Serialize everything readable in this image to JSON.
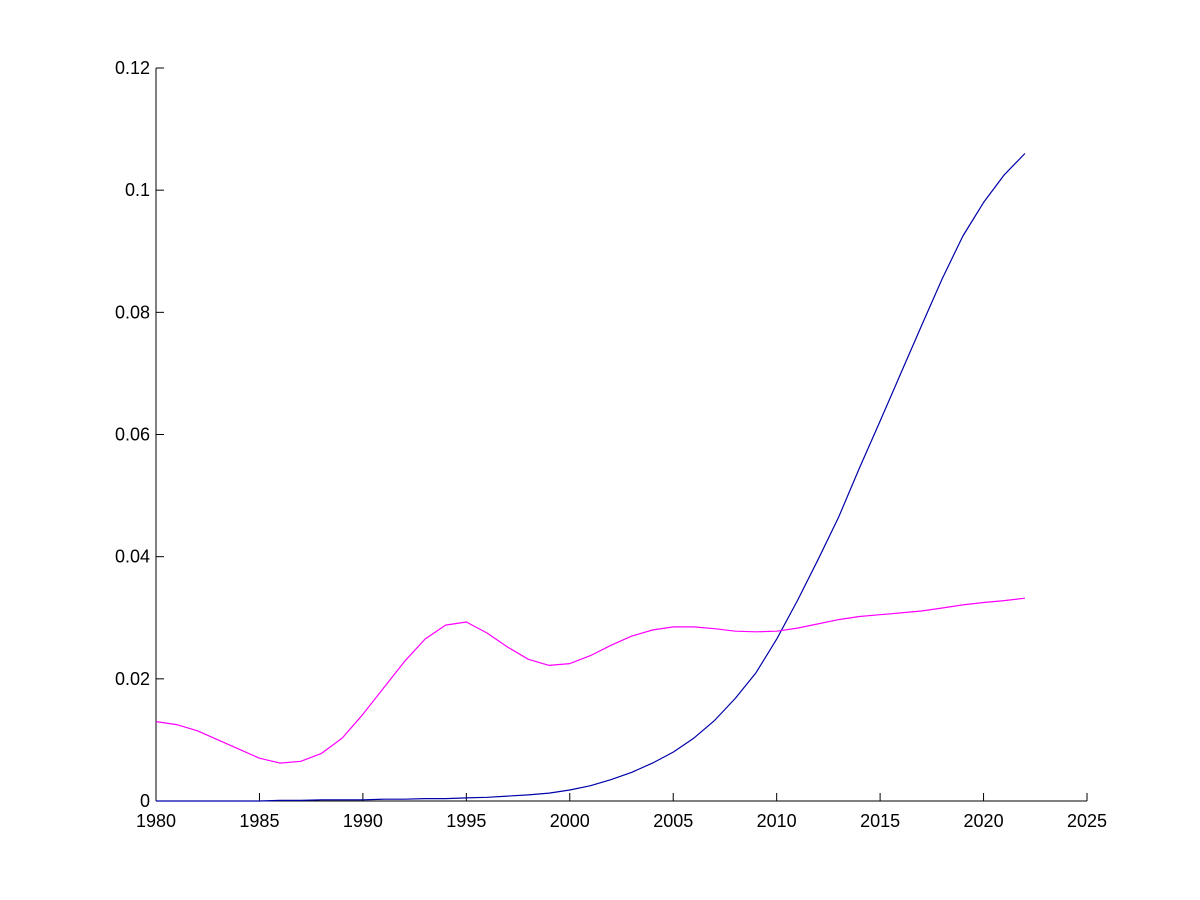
{
  "chart_data": {
    "type": "line",
    "title": "",
    "xlabel": "",
    "ylabel": "",
    "xlim": [
      1980,
      2025
    ],
    "ylim": [
      0,
      0.12
    ],
    "grid": false,
    "x_ticks": [
      "1980",
      "1985",
      "1990",
      "1995",
      "2000",
      "2005",
      "2010",
      "2015",
      "2020",
      "2025"
    ],
    "y_ticks": [
      "0",
      "0.02",
      "0.04",
      "0.06",
      "0.08",
      "0.1",
      "0.12"
    ],
    "series": [
      {
        "color": "#0000aa",
        "points": [
          [
            1980,
            0.0
          ],
          [
            1981,
            0.0
          ],
          [
            1982,
            0.0
          ],
          [
            1983,
            0.0
          ],
          [
            1984,
            0.0
          ],
          [
            1985,
            0.0
          ],
          [
            1986,
            0.0001
          ],
          [
            1987,
            0.0001
          ],
          [
            1988,
            0.0002
          ],
          [
            1989,
            0.0002
          ],
          [
            1990,
            0.0002
          ],
          [
            1991,
            0.0003
          ],
          [
            1992,
            0.0003
          ],
          [
            1993,
            0.0004
          ],
          [
            1994,
            0.0004
          ],
          [
            1995,
            0.0005
          ],
          [
            1996,
            0.0006
          ],
          [
            1997,
            0.0008
          ],
          [
            1998,
            0.001
          ],
          [
            1999,
            0.0013
          ],
          [
            2000,
            0.0018
          ],
          [
            2001,
            0.0025
          ],
          [
            2002,
            0.0035
          ],
          [
            2003,
            0.0047
          ],
          [
            2004,
            0.0062
          ],
          [
            2005,
            0.008
          ],
          [
            2006,
            0.0103
          ],
          [
            2007,
            0.0132
          ],
          [
            2008,
            0.0168
          ],
          [
            2009,
            0.021
          ],
          [
            2010,
            0.0265
          ],
          [
            2011,
            0.0328
          ],
          [
            2012,
            0.0395
          ],
          [
            2013,
            0.0465
          ],
          [
            2014,
            0.0545
          ],
          [
            2015,
            0.0622
          ],
          [
            2016,
            0.07
          ],
          [
            2017,
            0.0778
          ],
          [
            2018,
            0.0855
          ],
          [
            2019,
            0.0925
          ],
          [
            2020,
            0.098
          ],
          [
            2021,
            0.1025
          ],
          [
            2022,
            0.106
          ]
        ]
      },
      {
        "color": "#ff00ff",
        "points": [
          [
            1980,
            0.013
          ],
          [
            1981,
            0.0125
          ],
          [
            1982,
            0.0115
          ],
          [
            1983,
            0.01
          ],
          [
            1984,
            0.0085
          ],
          [
            1985,
            0.007
          ],
          [
            1986,
            0.0062
          ],
          [
            1987,
            0.0065
          ],
          [
            1988,
            0.0078
          ],
          [
            1989,
            0.0103
          ],
          [
            1990,
            0.0142
          ],
          [
            1991,
            0.0185
          ],
          [
            1992,
            0.0228
          ],
          [
            1993,
            0.0265
          ],
          [
            1994,
            0.0288
          ],
          [
            1995,
            0.0293
          ],
          [
            1996,
            0.0275
          ],
          [
            1997,
            0.0252
          ],
          [
            1998,
            0.0232
          ],
          [
            1999,
            0.0222
          ],
          [
            2000,
            0.0225
          ],
          [
            2001,
            0.0238
          ],
          [
            2002,
            0.0255
          ],
          [
            2003,
            0.027
          ],
          [
            2004,
            0.028
          ],
          [
            2005,
            0.0285
          ],
          [
            2006,
            0.0285
          ],
          [
            2007,
            0.0282
          ],
          [
            2008,
            0.0278
          ],
          [
            2009,
            0.0277
          ],
          [
            2010,
            0.0278
          ],
          [
            2011,
            0.0283
          ],
          [
            2012,
            0.029
          ],
          [
            2013,
            0.0297
          ],
          [
            2014,
            0.0302
          ],
          [
            2015,
            0.0305
          ],
          [
            2016,
            0.0308
          ],
          [
            2017,
            0.0311
          ],
          [
            2018,
            0.0316
          ],
          [
            2019,
            0.0321
          ],
          [
            2020,
            0.0325
          ],
          [
            2021,
            0.0328
          ],
          [
            2022,
            0.0332
          ]
        ]
      }
    ]
  }
}
